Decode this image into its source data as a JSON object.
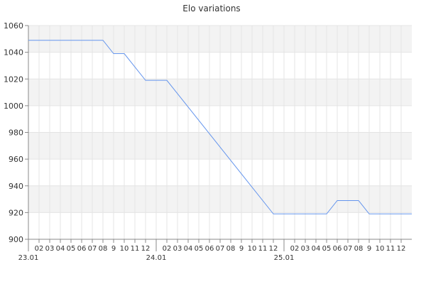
{
  "chart_data": {
    "type": "line",
    "title": "Elo variations",
    "xlabel": "",
    "ylabel": "",
    "ylim": [
      900,
      1060
    ],
    "yticks": [
      900,
      920,
      940,
      960,
      980,
      1000,
      1020,
      1040,
      1060
    ],
    "xtick_labels": [
      "23.01",
      "02",
      "03",
      "04",
      "05",
      "06",
      "07",
      "08",
      "9",
      "10",
      "11",
      "12",
      "24.01",
      "02",
      "03",
      "04",
      "05",
      "06",
      "07",
      "08",
      "9",
      "10",
      "11",
      "12",
      "25.01",
      "02",
      "03",
      "04",
      "05",
      "06",
      "07",
      "08",
      "9",
      "10",
      "11",
      "12"
    ],
    "grid": true,
    "line_color": "#6495ed",
    "band_color": "#f3f3f3",
    "series": [
      {
        "x": [
          0,
          7,
          8,
          9,
          11,
          13,
          23,
          28,
          29,
          31,
          32,
          36
        ],
        "y": [
          1049,
          1049,
          1039,
          1039,
          1019,
          1019,
          919,
          919,
          929,
          929,
          919,
          919
        ]
      }
    ]
  }
}
